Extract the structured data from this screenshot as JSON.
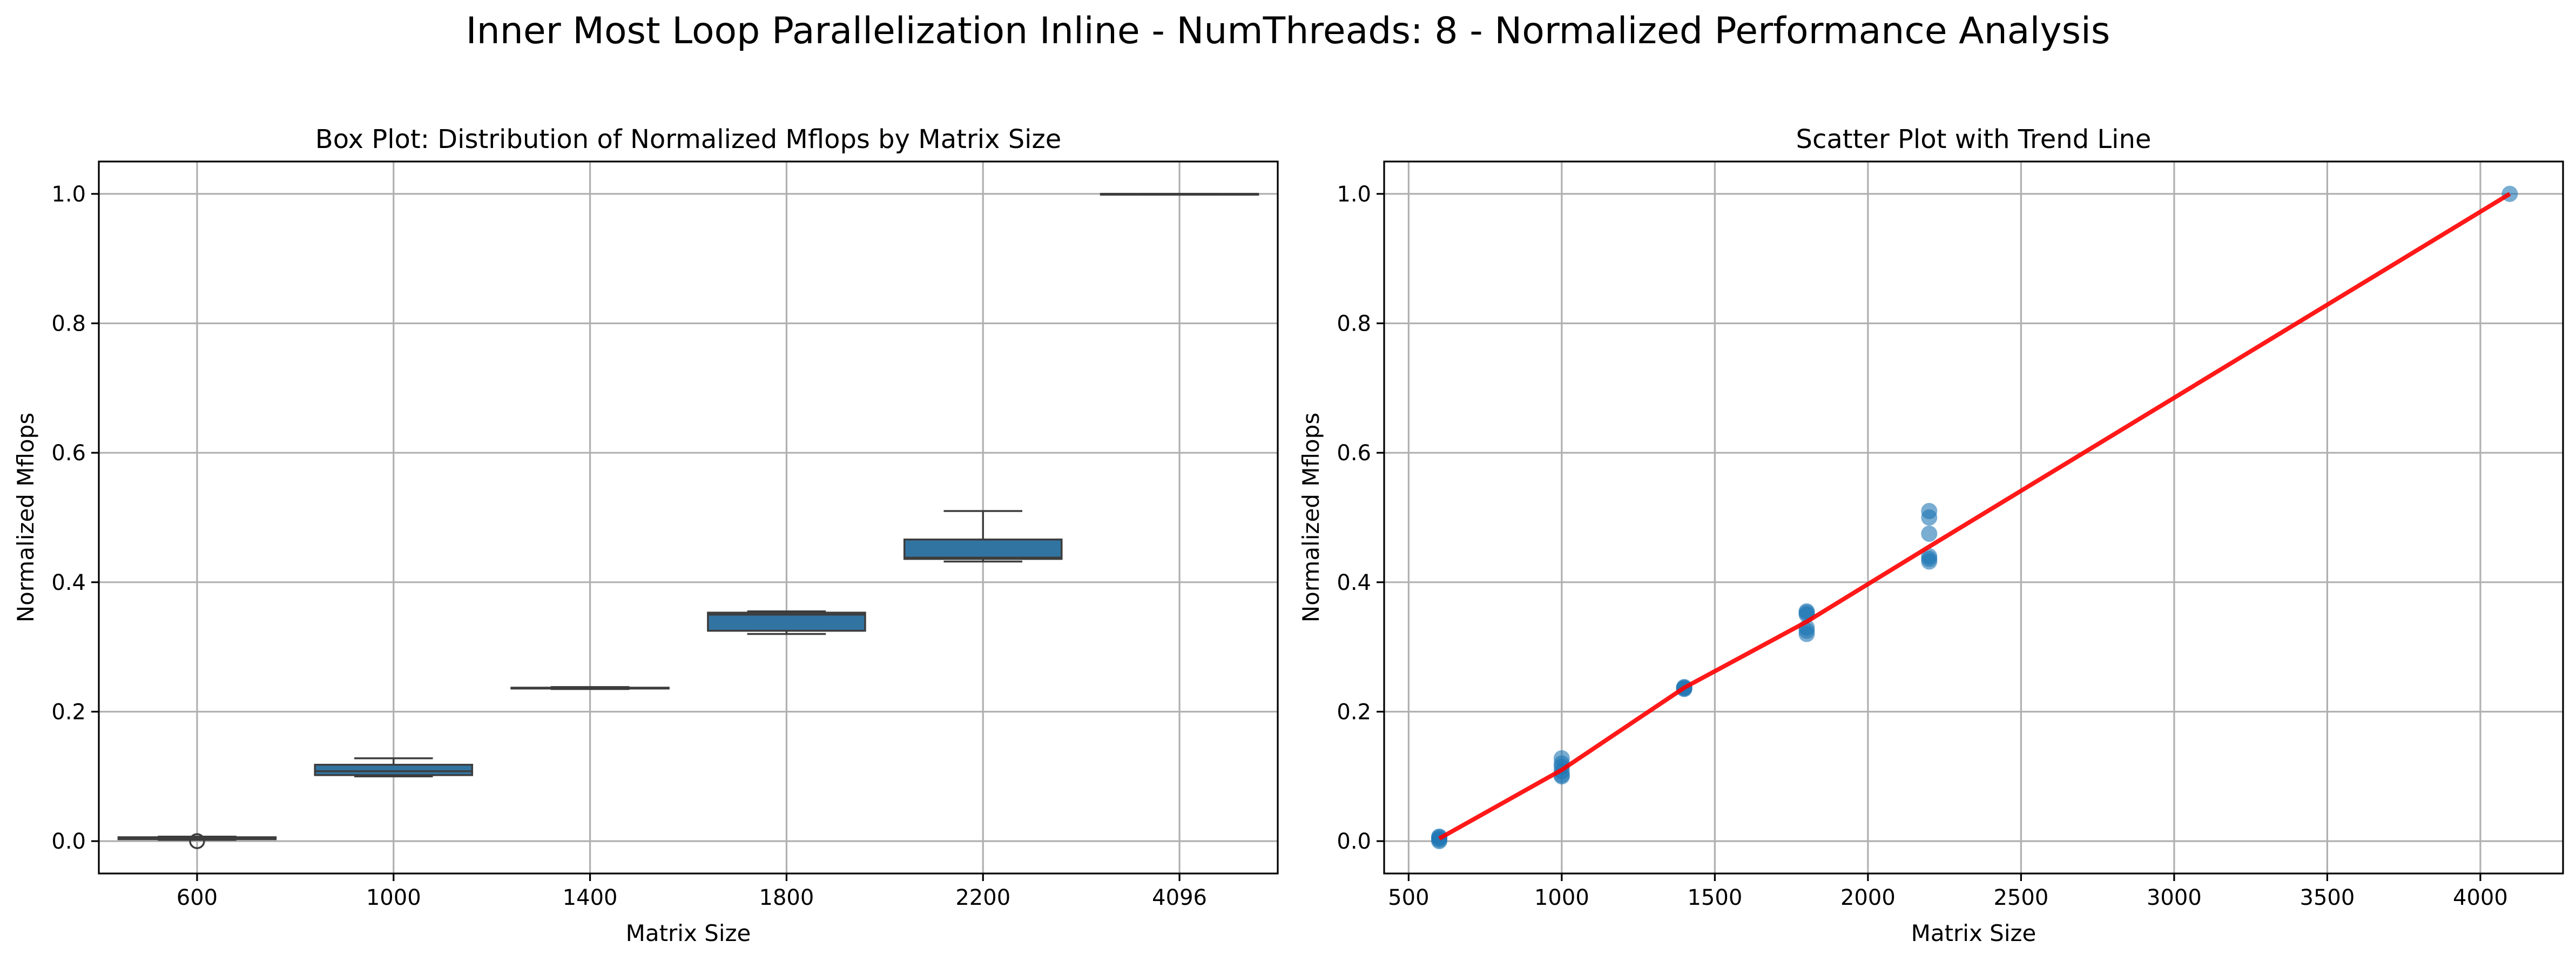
{
  "figure": {
    "title": "Inner Most Loop Parallelization Inline - NumThreads: 8 - Normalized Performance Analysis"
  },
  "chart_data": [
    {
      "type": "box",
      "title": "Box Plot: Distribution of Normalized Mflops by Matrix Size",
      "xlabel": "Matrix Size",
      "ylabel": "Normalized Mflops",
      "ylim": [
        -0.05,
        1.05
      ],
      "yticks": [
        0.0,
        0.2,
        0.4,
        0.6,
        0.8,
        1.0
      ],
      "ytick_labels": [
        "0.0",
        "0.2",
        "0.4",
        "0.6",
        "0.8",
        "1.0"
      ],
      "grid": true,
      "color": "#3274a1",
      "categories": [
        "600",
        "1000",
        "1400",
        "1800",
        "2200",
        "4096"
      ],
      "boxes": [
        {
          "min": 0.002,
          "q1": 0.003,
          "median": 0.004,
          "q3": 0.006,
          "max": 0.007,
          "outliers": [
            0.0
          ]
        },
        {
          "min": 0.1,
          "q1": 0.102,
          "median": 0.108,
          "q3": 0.118,
          "max": 0.128,
          "outliers": []
        },
        {
          "min": 0.235,
          "q1": 0.236,
          "median": 0.237,
          "q3": 0.237,
          "max": 0.238,
          "outliers": []
        },
        {
          "min": 0.32,
          "q1": 0.325,
          "median": 0.35,
          "q3": 0.353,
          "max": 0.355,
          "outliers": []
        },
        {
          "min": 0.432,
          "q1": 0.436,
          "median": 0.438,
          "q3": 0.466,
          "max": 0.51,
          "outliers": []
        },
        {
          "min": 1.0,
          "q1": 1.0,
          "median": 1.0,
          "q3": 1.0,
          "max": 1.0,
          "outliers": []
        }
      ]
    },
    {
      "type": "scatter",
      "title": "Scatter Plot with Trend Line",
      "xlabel": "Matrix Size",
      "ylabel": "Normalized Mflops",
      "xlim": [
        420,
        4270
      ],
      "ylim": [
        -0.05,
        1.05
      ],
      "xticks": [
        500,
        1000,
        1500,
        2000,
        2500,
        3000,
        3500,
        4000
      ],
      "xtick_labels": [
        "500",
        "1000",
        "1500",
        "2000",
        "2500",
        "3000",
        "3500",
        "4000"
      ],
      "yticks": [
        0.0,
        0.2,
        0.4,
        0.6,
        0.8,
        1.0
      ],
      "ytick_labels": [
        "0.0",
        "0.2",
        "0.4",
        "0.6",
        "0.8",
        "1.0"
      ],
      "grid": true,
      "point_color": "#1f77b4",
      "trend_color": "#ff0000",
      "points": {
        "x": [
          600,
          600,
          600,
          600,
          600,
          1000,
          1000,
          1000,
          1000,
          1000,
          1000,
          1400,
          1400,
          1400,
          1400,
          1800,
          1800,
          1800,
          1800,
          1800,
          1800,
          2200,
          2200,
          2200,
          2200,
          2200,
          2200,
          4096
        ],
        "y": [
          0.0,
          0.002,
          0.004,
          0.006,
          0.007,
          0.1,
          0.102,
          0.108,
          0.115,
          0.12,
          0.128,
          0.235,
          0.236,
          0.237,
          0.238,
          0.32,
          0.325,
          0.33,
          0.35,
          0.353,
          0.355,
          0.432,
          0.436,
          0.44,
          0.475,
          0.5,
          0.51,
          1.0
        ]
      },
      "trend_line": {
        "x": [
          600,
          1000,
          1400,
          1800,
          2200,
          4096
        ],
        "y": [
          0.004,
          0.11,
          0.237,
          0.339,
          0.455,
          1.0
        ]
      }
    }
  ]
}
